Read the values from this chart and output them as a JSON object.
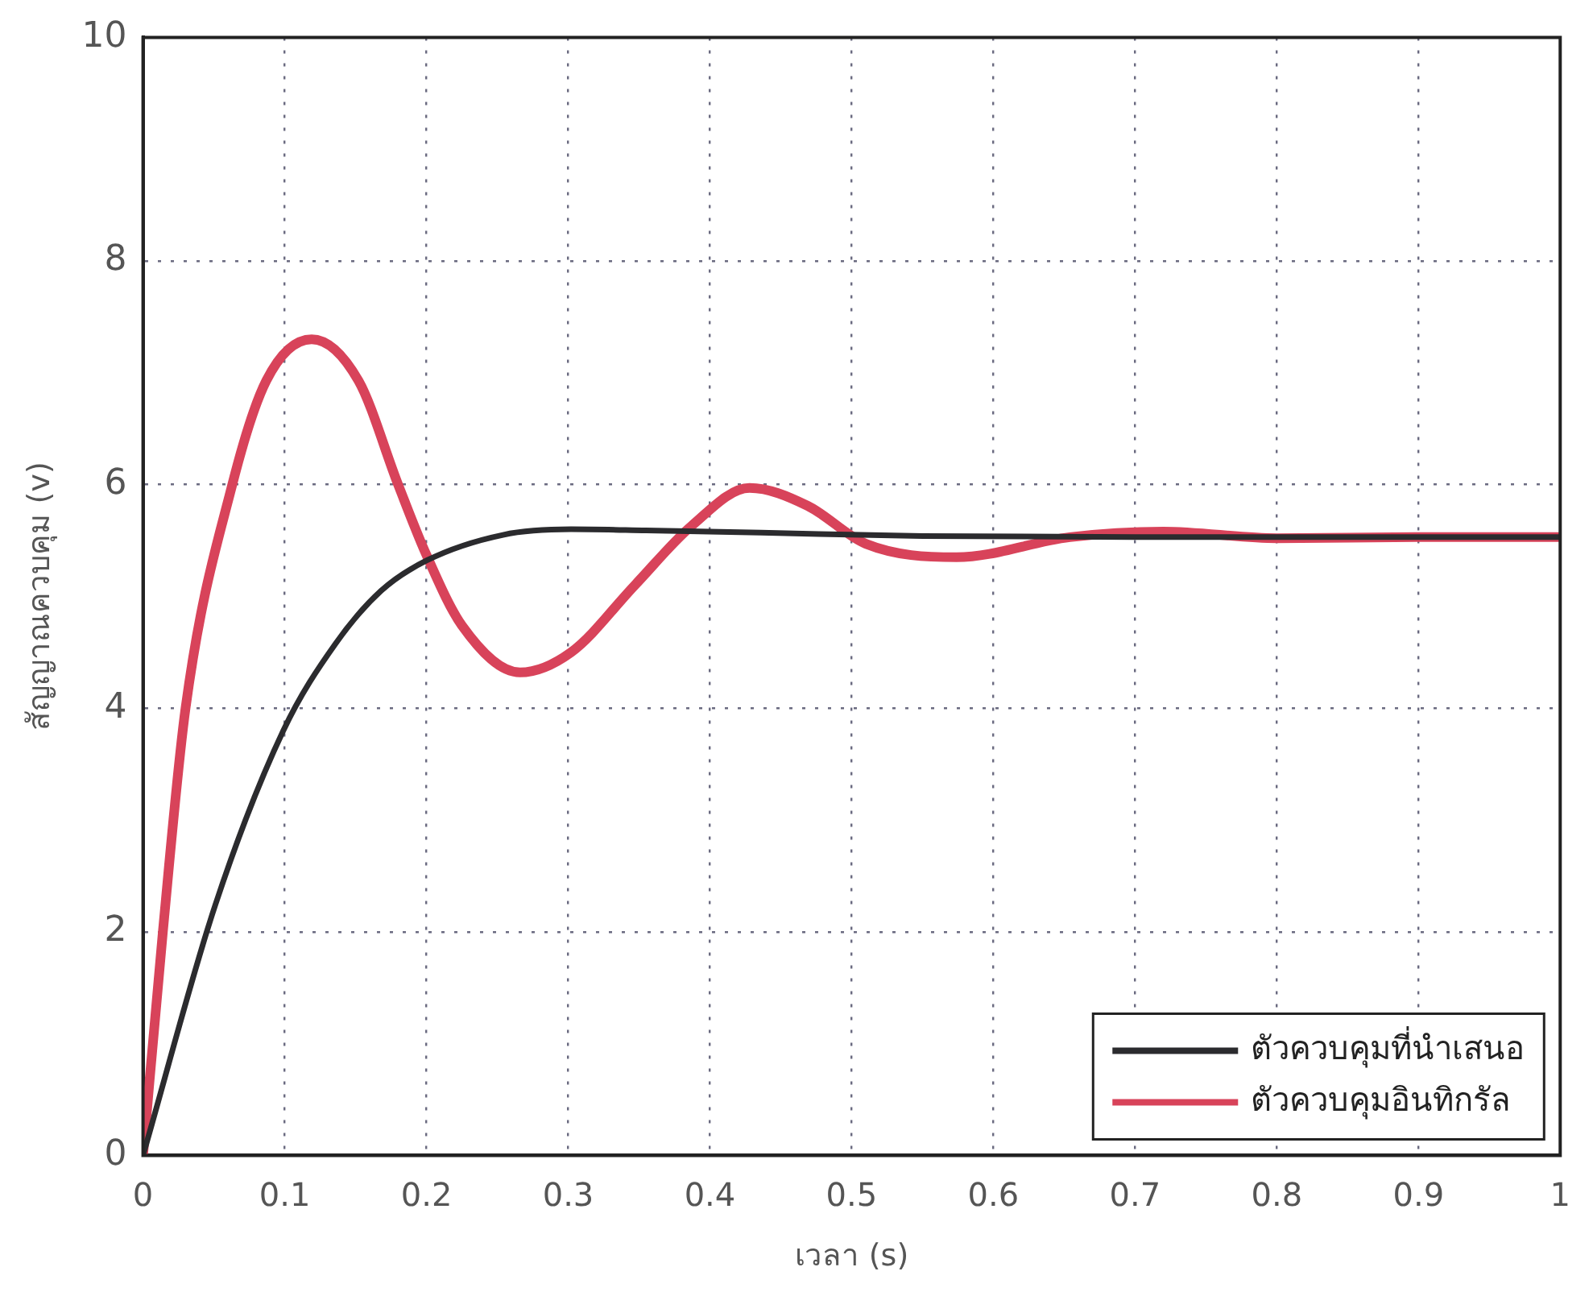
{
  "chart_data": {
    "type": "line",
    "xlabel": "เวลา (s)",
    "ylabel": "สัญญาณควบคุม (v)",
    "xlim": [
      0,
      1
    ],
    "xticks": [
      0,
      0.1,
      0.2,
      0.3,
      0.4,
      0.5,
      0.6,
      0.7,
      0.8,
      0.9,
      1
    ],
    "ylim": [
      0,
      10
    ],
    "yticks": [
      0,
      2,
      4,
      6,
      8,
      10
    ],
    "grid": true,
    "legend": "bottom right",
    "marker": "none",
    "line_style": "solid",
    "series": [
      {
        "name": "ตัวควบคุมที่นำเสนอ",
        "color": "#2b2b2e",
        "x": [
          0,
          0.051,
          0.099,
          0.136,
          0.168,
          0.2,
          0.254,
          0.302,
          0.355,
          0.436,
          0.55,
          0.7,
          0.85,
          1
        ],
        "values": [
          0,
          2.24,
          3.8,
          4.58,
          5.05,
          5.32,
          5.55,
          5.6,
          5.59,
          5.57,
          5.54,
          5.53,
          5.53,
          5.53
        ]
      },
      {
        "name": "ตัวควบคุมอินทิกรัล",
        "color": "#d8435a",
        "x": [
          0,
          0.014,
          0.03,
          0.063,
          0.087,
          0.119,
          0.152,
          0.18,
          0.2,
          0.225,
          0.266,
          0.302,
          0.347,
          0.387,
          0.428,
          0.469,
          0.51,
          0.574,
          0.654,
          0.72,
          0.8,
          0.9,
          1
        ],
        "values": [
          0,
          2,
          4,
          6,
          6.93,
          7.3,
          6.93,
          6,
          5.37,
          4.74,
          4.32,
          4.5,
          5.1,
          5.63,
          5.97,
          5.81,
          5.47,
          5.35,
          5.53,
          5.58,
          5.52,
          5.53,
          5.53
        ]
      }
    ]
  }
}
